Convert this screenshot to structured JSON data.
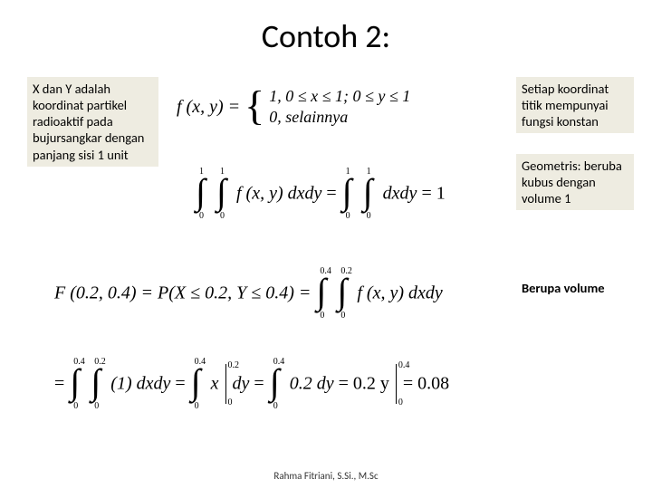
{
  "title": "Contoh 2:",
  "captions": {
    "left": "X dan Y adalah koordinat partikel radioaktif pada bujursangkar dengan panjang sisi 1 unit",
    "right1": "Setiap koordinat titik mempunyai fungsi konstan",
    "right2": "Geometris: beruba kubus dengan volume 1",
    "right3": "Berupa volume"
  },
  "eq1": {
    "lhs": "f (x, y) = ",
    "case1": "1,   0 ≤ x ≤ 1;  0 ≤ y ≤ 1",
    "case2": "0,  selainnya"
  },
  "eq2": {
    "hi1": "1",
    "lo1": "0",
    "hi2": "1",
    "lo2": "0",
    "mid1": "f (x, y) dxdy",
    "eq": " = ",
    "hi3": "1",
    "lo3": "0",
    "hi4": "1",
    "lo4": "0",
    "mid2": "dxdy",
    "rhs": " = 1"
  },
  "eq3": {
    "lhs": "F (0.2, 0.4) = P(X ≤ 0.2, Y ≤ 0.4) = ",
    "hi1": "0.4",
    "lo1": "0",
    "hi2": "0.2",
    "lo2": "0",
    "rhs": "f (x, y) dxdy"
  },
  "eq4": {
    "pre": " = ",
    "hi1": "0.4",
    "lo1": "0",
    "hi2": "0.2",
    "lo2": "0",
    "seg1": "(1) dxdy",
    "eq1": "  =  ",
    "hi3": "0.4",
    "lo3": "0",
    "barx_hi": "0.2",
    "barx_lo": "0",
    "segx": "x",
    "segdy": " dy",
    "eq2": "   =  ",
    "hi4": "0.4",
    "lo4": "0",
    "seg2": "0.2 dy",
    "eq3": "  =  0.2 y",
    "bary_hi": "0.4",
    "bary_lo": "0",
    "result": "  =  0.08"
  },
  "footer": "Rahma Fitriani, S.Si., M.Sc"
}
